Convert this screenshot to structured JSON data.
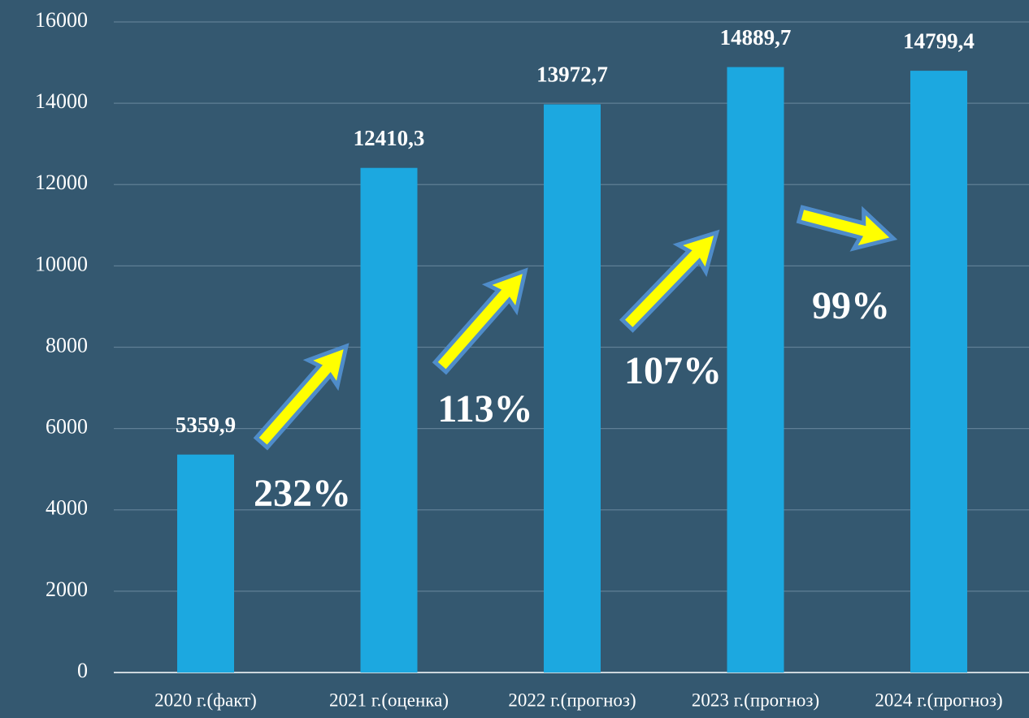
{
  "chart_data": {
    "type": "bar",
    "categories": [
      "2020 г.(факт)",
      "2021 г.(оценка)",
      "2022 г.(прогноз)",
      "2023 г.(прогноз)",
      "2024 г.(прогноз)"
    ],
    "values": [
      5359.9,
      12410.3,
      13972.7,
      14889.7,
      14799.4
    ],
    "value_labels": [
      "5359,9",
      "12410,3",
      "13972,7",
      "14889,7",
      "14799,4"
    ],
    "color": "#1ca8e0",
    "ylim": [
      0,
      16000
    ],
    "yticks": [
      0,
      2000,
      4000,
      6000,
      8000,
      10000,
      12000,
      14000,
      16000
    ],
    "grid": true,
    "annotations": [
      "232%",
      "113%",
      "107%",
      "99%"
    ]
  }
}
